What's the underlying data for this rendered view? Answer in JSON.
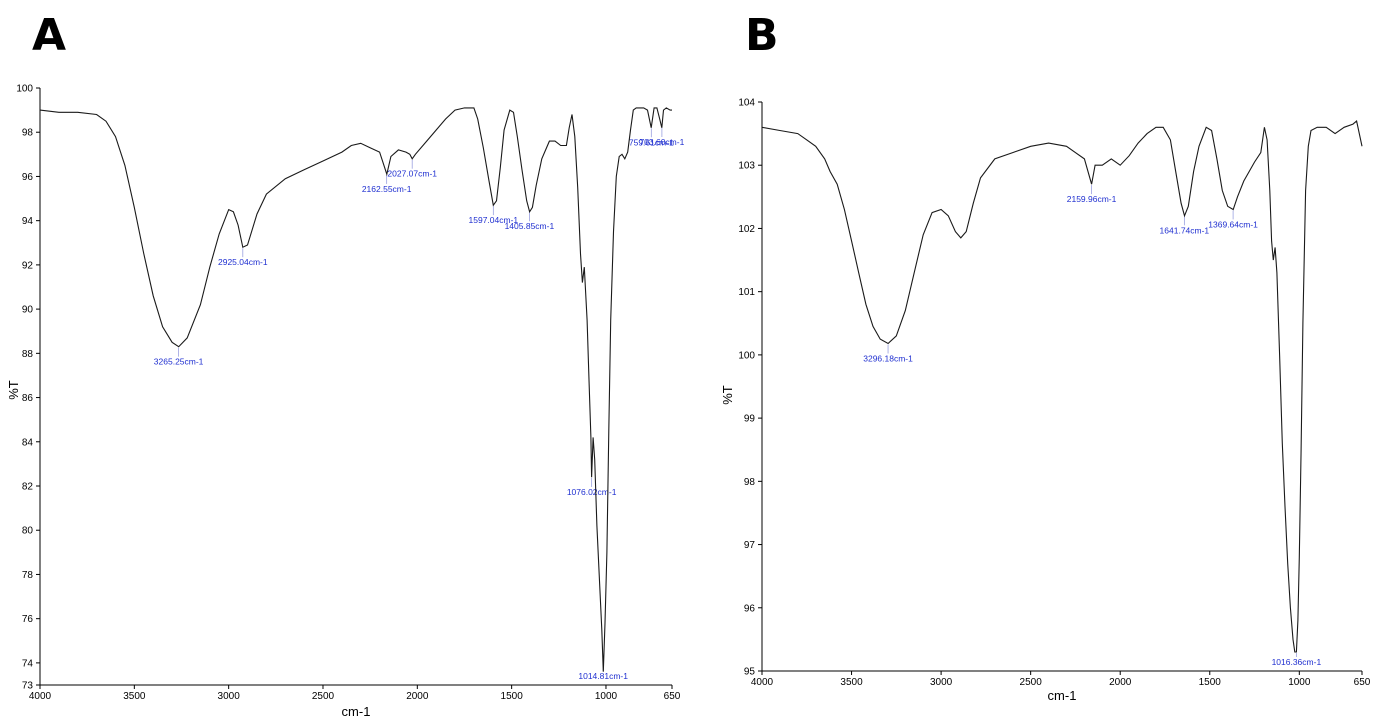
{
  "chart_data": [
    {
      "type": "line",
      "panel": "A",
      "xlabel": "cm-1",
      "ylabel": "%T",
      "xlim": [
        4000,
        650
      ],
      "ylim": [
        73,
        100
      ],
      "xticks": [
        4000,
        3500,
        3000,
        2500,
        2000,
        1500,
        1000,
        650
      ],
      "yticks": [
        73,
        74,
        76,
        78,
        80,
        82,
        84,
        86,
        88,
        90,
        92,
        94,
        96,
        98,
        100
      ],
      "x_reversed": true,
      "grid": false,
      "series": [
        {
          "color": "#1a1a1a",
          "points": [
            [
              4000,
              99.0
            ],
            [
              3900,
              98.9
            ],
            [
              3800,
              98.9
            ],
            [
              3700,
              98.8
            ],
            [
              3650,
              98.5
            ],
            [
              3600,
              97.8
            ],
            [
              3550,
              96.5
            ],
            [
              3500,
              94.6
            ],
            [
              3450,
              92.5
            ],
            [
              3400,
              90.6
            ],
            [
              3350,
              89.2
            ],
            [
              3300,
              88.5
            ],
            [
              3265,
              88.3
            ],
            [
              3220,
              88.7
            ],
            [
              3150,
              90.2
            ],
            [
              3100,
              91.9
            ],
            [
              3050,
              93.4
            ],
            [
              3000,
              94.5
            ],
            [
              2975,
              94.4
            ],
            [
              2950,
              93.8
            ],
            [
              2925,
              92.8
            ],
            [
              2900,
              92.9
            ],
            [
              2850,
              94.3
            ],
            [
              2800,
              95.2
            ],
            [
              2700,
              95.9
            ],
            [
              2600,
              96.3
            ],
            [
              2500,
              96.7
            ],
            [
              2400,
              97.1
            ],
            [
              2350,
              97.4
            ],
            [
              2300,
              97.5
            ],
            [
              2250,
              97.3
            ],
            [
              2200,
              97.1
            ],
            [
              2162,
              96.1
            ],
            [
              2140,
              96.9
            ],
            [
              2100,
              97.2
            ],
            [
              2060,
              97.1
            ],
            [
              2040,
              97.0
            ],
            [
              2027,
              96.8
            ],
            [
              2010,
              97.0
            ],
            [
              1950,
              97.6
            ],
            [
              1900,
              98.1
            ],
            [
              1850,
              98.6
            ],
            [
              1800,
              99.0
            ],
            [
              1750,
              99.1
            ],
            [
              1700,
              99.1
            ],
            [
              1680,
              98.6
            ],
            [
              1650,
              97.3
            ],
            [
              1620,
              95.8
            ],
            [
              1597,
              94.7
            ],
            [
              1580,
              94.9
            ],
            [
              1560,
              96.4
            ],
            [
              1540,
              98.1
            ],
            [
              1510,
              99.0
            ],
            [
              1490,
              98.9
            ],
            [
              1470,
              97.8
            ],
            [
              1445,
              96.3
            ],
            [
              1420,
              94.9
            ],
            [
              1405,
              94.4
            ],
            [
              1390,
              94.6
            ],
            [
              1370,
              95.6
            ],
            [
              1340,
              96.8
            ],
            [
              1300,
              97.6
            ],
            [
              1270,
              97.6
            ],
            [
              1240,
              97.4
            ],
            [
              1210,
              97.4
            ],
            [
              1195,
              98.2
            ],
            [
              1180,
              98.8
            ],
            [
              1165,
              97.8
            ],
            [
              1150,
              95.5
            ],
            [
              1135,
              92.5
            ],
            [
              1125,
              91.2
            ],
            [
              1115,
              91.9
            ],
            [
              1100,
              89.5
            ],
            [
              1090,
              86.8
            ],
            [
              1080,
              84.2
            ],
            [
              1076,
              82.4
            ],
            [
              1068,
              84.2
            ],
            [
              1060,
              83.2
            ],
            [
              1048,
              80.2
            ],
            [
              1035,
              77.8
            ],
            [
              1022,
              75.5
            ],
            [
              1014,
              73.6
            ],
            [
              1005,
              75.8
            ],
            [
              995,
              79.0
            ],
            [
              985,
              84.5
            ],
            [
              975,
              89.5
            ],
            [
              960,
              93.5
            ],
            [
              945,
              96.0
            ],
            [
              930,
              96.9
            ],
            [
              915,
              97.0
            ],
            [
              900,
              96.8
            ],
            [
              885,
              97.1
            ],
            [
              870,
              98.1
            ],
            [
              855,
              99.0
            ],
            [
              840,
              99.1
            ],
            [
              800,
              99.1
            ],
            [
              780,
              99.0
            ],
            [
              760,
              98.2
            ],
            [
              745,
              99.1
            ],
            [
              730,
              99.1
            ],
            [
              715,
              98.6
            ],
            [
              704,
              98.2
            ],
            [
              695,
              99.0
            ],
            [
              680,
              99.1
            ],
            [
              660,
              99.0
            ],
            [
              650,
              99.0
            ]
          ]
        }
      ],
      "annotations": [
        {
          "x": 3265.25,
          "label": "3265.25cm-1"
        },
        {
          "x": 2925.04,
          "label": "2925.04cm-1"
        },
        {
          "x": 2162.55,
          "label": "2162.55cm-1"
        },
        {
          "x": 2027.07,
          "label": "2027.07cm-1"
        },
        {
          "x": 1597.04,
          "label": "1597.04cm-1"
        },
        {
          "x": 1405.85,
          "label": "1405.85cm-1"
        },
        {
          "x": 1076.02,
          "label": "1076.02cm-1"
        },
        {
          "x": 1014.81,
          "label": "1014.81cm-1"
        },
        {
          "x": 759.61,
          "label": "759.61cm-1"
        },
        {
          "x": 703.6,
          "label": "703.60cm-1"
        }
      ]
    },
    {
      "type": "line",
      "panel": "B",
      "xlabel": "cm-1",
      "ylabel": "%T",
      "xlim": [
        4000,
        650
      ],
      "ylim": [
        95,
        104
      ],
      "xticks": [
        4000,
        3500,
        3000,
        2500,
        2000,
        1500,
        1000,
        650
      ],
      "yticks": [
        95,
        96,
        97,
        98,
        99,
        100,
        101,
        102,
        103,
        104
      ],
      "x_reversed": true,
      "grid": false,
      "series": [
        {
          "color": "#1a1a1a",
          "points": [
            [
              4000,
              103.6
            ],
            [
              3900,
              103.55
            ],
            [
              3800,
              103.5
            ],
            [
              3750,
              103.4
            ],
            [
              3700,
              103.3
            ],
            [
              3650,
              103.1
            ],
            [
              3620,
              102.9
            ],
            [
              3580,
              102.7
            ],
            [
              3540,
              102.3
            ],
            [
              3500,
              101.8
            ],
            [
              3460,
              101.3
            ],
            [
              3420,
              100.8
            ],
            [
              3380,
              100.45
            ],
            [
              3340,
              100.25
            ],
            [
              3296,
              100.18
            ],
            [
              3250,
              100.3
            ],
            [
              3200,
              100.7
            ],
            [
              3150,
              101.3
            ],
            [
              3100,
              101.9
            ],
            [
              3050,
              102.25
            ],
            [
              3000,
              102.3
            ],
            [
              2960,
              102.2
            ],
            [
              2920,
              101.95
            ],
            [
              2890,
              101.85
            ],
            [
              2860,
              101.95
            ],
            [
              2820,
              102.4
            ],
            [
              2780,
              102.8
            ],
            [
              2700,
              103.1
            ],
            [
              2600,
              103.2
            ],
            [
              2500,
              103.3
            ],
            [
              2400,
              103.35
            ],
            [
              2300,
              103.3
            ],
            [
              2250,
              103.2
            ],
            [
              2200,
              103.1
            ],
            [
              2160,
              102.7
            ],
            [
              2140,
              103.0
            ],
            [
              2100,
              103.0
            ],
            [
              2050,
              103.1
            ],
            [
              2000,
              103.0
            ],
            [
              1950,
              103.15
            ],
            [
              1900,
              103.35
            ],
            [
              1850,
              103.5
            ],
            [
              1800,
              103.6
            ],
            [
              1760,
              103.6
            ],
            [
              1720,
              103.4
            ],
            [
              1690,
              102.9
            ],
            [
              1660,
              102.4
            ],
            [
              1641,
              102.2
            ],
            [
              1620,
              102.35
            ],
            [
              1590,
              102.9
            ],
            [
              1560,
              103.3
            ],
            [
              1520,
              103.6
            ],
            [
              1490,
              103.55
            ],
            [
              1460,
              103.1
            ],
            [
              1430,
              102.6
            ],
            [
              1400,
              102.35
            ],
            [
              1369,
              102.3
            ],
            [
              1345,
              102.5
            ],
            [
              1310,
              102.75
            ],
            [
              1280,
              102.9
            ],
            [
              1250,
              103.05
            ],
            [
              1215,
              103.2
            ],
            [
              1195,
              103.6
            ],
            [
              1180,
              103.4
            ],
            [
              1165,
              102.6
            ],
            [
              1155,
              101.8
            ],
            [
              1145,
              101.5
            ],
            [
              1135,
              101.7
            ],
            [
              1125,
              101.3
            ],
            [
              1110,
              100.0
            ],
            [
              1095,
              98.6
            ],
            [
              1080,
              97.6
            ],
            [
              1065,
              96.7
            ],
            [
              1050,
              96.0
            ],
            [
              1035,
              95.5
            ],
            [
              1025,
              95.3
            ],
            [
              1016,
              95.3
            ],
            [
              1008,
              95.8
            ],
            [
              1000,
              96.8
            ],
            [
              990,
              98.5
            ],
            [
              980,
              100.5
            ],
            [
              965,
              102.6
            ],
            [
              950,
              103.3
            ],
            [
              935,
              103.55
            ],
            [
              900,
              103.6
            ],
            [
              850,
              103.6
            ],
            [
              800,
              103.5
            ],
            [
              750,
              103.6
            ],
            [
              700,
              103.65
            ],
            [
              680,
              103.7
            ],
            [
              665,
              103.5
            ],
            [
              650,
              103.3
            ]
          ]
        }
      ],
      "annotations": [
        {
          "x": 3296.18,
          "label": "3296.18cm-1"
        },
        {
          "x": 2159.96,
          "label": "2159.96cm-1"
        },
        {
          "x": 1641.74,
          "label": "1641.74cm-1"
        },
        {
          "x": 1369.64,
          "label": "1369.64cm-1"
        },
        {
          "x": 1016.36,
          "label": "1016.36cm-1"
        }
      ]
    }
  ],
  "panels": [
    {
      "label": "A"
    },
    {
      "label": "B"
    }
  ],
  "colors": {
    "line": "#1a1a1a",
    "annotation": "#1f2fd0"
  }
}
